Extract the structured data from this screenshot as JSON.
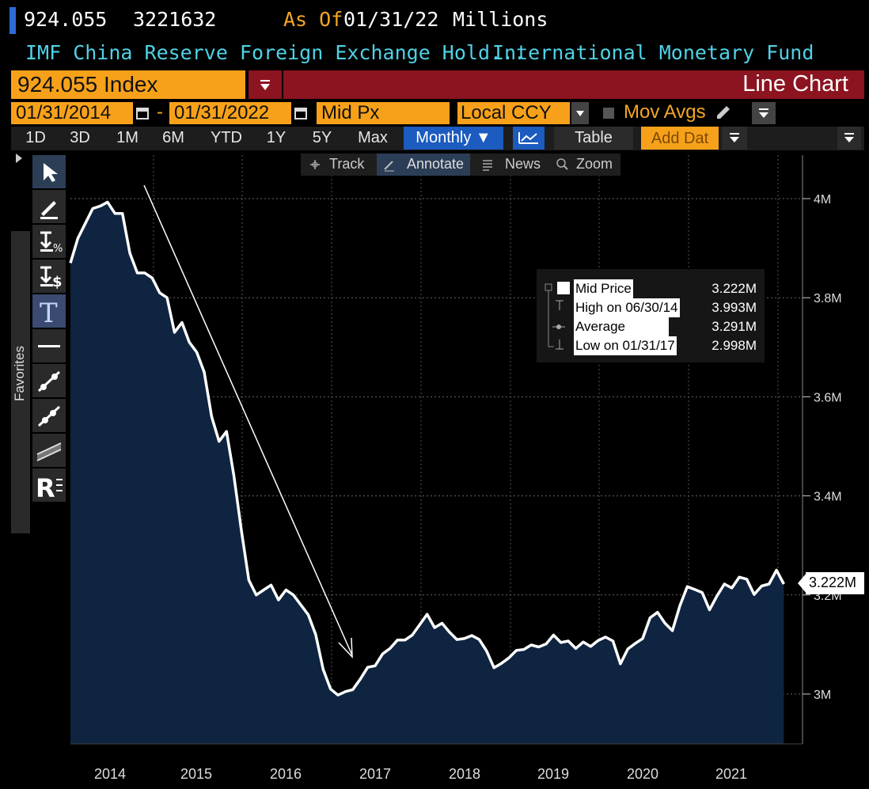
{
  "header": {
    "ticker_value": "924.055",
    "id_number": "3221632",
    "as_of_label": "As Of",
    "as_of_date": "01/31/22",
    "units": "Millions",
    "description": "IMF China Reserve Foreign Exchange Hold...",
    "source": "International Monetary Fund"
  },
  "security_bar": {
    "security": "924.055 Index",
    "title": "Line Chart"
  },
  "params": {
    "start_date": "01/31/2014",
    "dash": "-",
    "end_date": "01/31/2022",
    "field": "Mid Px",
    "currency": "Local CCY",
    "mov_avgs": "Mov Avgs"
  },
  "ranges": [
    "1D",
    "3D",
    "1M",
    "6M",
    "YTD",
    "1Y",
    "5Y",
    "Max"
  ],
  "range_bar": {
    "frequency": "Monthly ▼",
    "table": "Table",
    "add_data": "Add Dat"
  },
  "toolbar": {
    "track": "Track",
    "annotate": "Annotate",
    "news": "News",
    "zoom": "Zoom"
  },
  "favorites_label": "Favorites",
  "legend": {
    "mid_label": "Mid Price",
    "mid_value": "3.222M",
    "high_label": "High on 06/30/14",
    "high_value": "3.993M",
    "avg_label": "Average",
    "avg_value": "3.291M",
    "low_label": "Low on 01/31/17",
    "low_value": "2.998M"
  },
  "last_value_label": "3.222M",
  "colors": {
    "accent": "#f7a11a",
    "title_bar": "#8b1420",
    "area_fill": "#0e2440",
    "line": "#ffffff",
    "cyan_text": "#4fd2e6"
  },
  "chart_data": {
    "type": "area",
    "ylim": [
      2.9,
      4.1
    ],
    "yticks": [
      3.0,
      3.2,
      3.4,
      3.6,
      3.8,
      4.0
    ],
    "ytick_labels": [
      "3M",
      "3.2M",
      "3.4M",
      "3.6M",
      "3.8M",
      "4M"
    ],
    "xtick_labels": [
      "2014",
      "2015",
      "2016",
      "2017",
      "2018",
      "2019",
      "2020",
      "2021"
    ],
    "x_start": "2014-01",
    "x": [
      "2014-01",
      "2014-02",
      "2014-03",
      "2014-04",
      "2014-05",
      "2014-06",
      "2014-07",
      "2014-08",
      "2014-09",
      "2014-10",
      "2014-11",
      "2014-12",
      "2015-01",
      "2015-02",
      "2015-03",
      "2015-04",
      "2015-05",
      "2015-06",
      "2015-07",
      "2015-08",
      "2015-09",
      "2015-10",
      "2015-11",
      "2015-12",
      "2016-01",
      "2016-02",
      "2016-03",
      "2016-04",
      "2016-05",
      "2016-06",
      "2016-07",
      "2016-08",
      "2016-09",
      "2016-10",
      "2016-11",
      "2016-12",
      "2017-01",
      "2017-02",
      "2017-03",
      "2017-04",
      "2017-05",
      "2017-06",
      "2017-07",
      "2017-08",
      "2017-09",
      "2017-10",
      "2017-11",
      "2017-12",
      "2018-01",
      "2018-02",
      "2018-03",
      "2018-04",
      "2018-05",
      "2018-06",
      "2018-07",
      "2018-08",
      "2018-09",
      "2018-10",
      "2018-11",
      "2018-12",
      "2019-01",
      "2019-02",
      "2019-03",
      "2019-04",
      "2019-05",
      "2019-06",
      "2019-07",
      "2019-08",
      "2019-09",
      "2019-10",
      "2019-11",
      "2019-12",
      "2020-01",
      "2020-02",
      "2020-03",
      "2020-04",
      "2020-05",
      "2020-06",
      "2020-07",
      "2020-08",
      "2020-09",
      "2020-10",
      "2020-11",
      "2020-12",
      "2021-01",
      "2021-02",
      "2021-03",
      "2021-04",
      "2021-05",
      "2021-06",
      "2021-07",
      "2021-08",
      "2021-09",
      "2021-10",
      "2021-11",
      "2021-12",
      "2022-01"
    ],
    "series": [
      {
        "values": [
          3.87,
          3.92,
          3.95,
          3.98,
          3.985,
          3.993,
          3.97,
          3.97,
          3.89,
          3.85,
          3.85,
          3.84,
          3.81,
          3.8,
          3.73,
          3.75,
          3.71,
          3.69,
          3.65,
          3.56,
          3.51,
          3.53,
          3.44,
          3.33,
          3.23,
          3.2,
          3.21,
          3.22,
          3.19,
          3.21,
          3.2,
          3.18,
          3.16,
          3.12,
          3.05,
          3.01,
          2.998,
          3.005,
          3.009,
          3.03,
          3.054,
          3.057,
          3.081,
          3.092,
          3.109,
          3.109,
          3.119,
          3.14,
          3.161,
          3.134,
          3.143,
          3.125,
          3.11,
          3.112,
          3.118,
          3.11,
          3.087,
          3.053,
          3.062,
          3.073,
          3.088,
          3.09,
          3.099,
          3.095,
          3.101,
          3.119,
          3.104,
          3.107,
          3.092,
          3.105,
          3.096,
          3.108,
          3.115,
          3.107,
          3.061,
          3.091,
          3.102,
          3.112,
          3.154,
          3.165,
          3.143,
          3.128,
          3.178,
          3.217,
          3.211,
          3.205,
          3.17,
          3.198,
          3.222,
          3.214,
          3.236,
          3.232,
          3.201,
          3.218,
          3.222,
          3.25,
          3.222
        ]
      }
    ]
  }
}
